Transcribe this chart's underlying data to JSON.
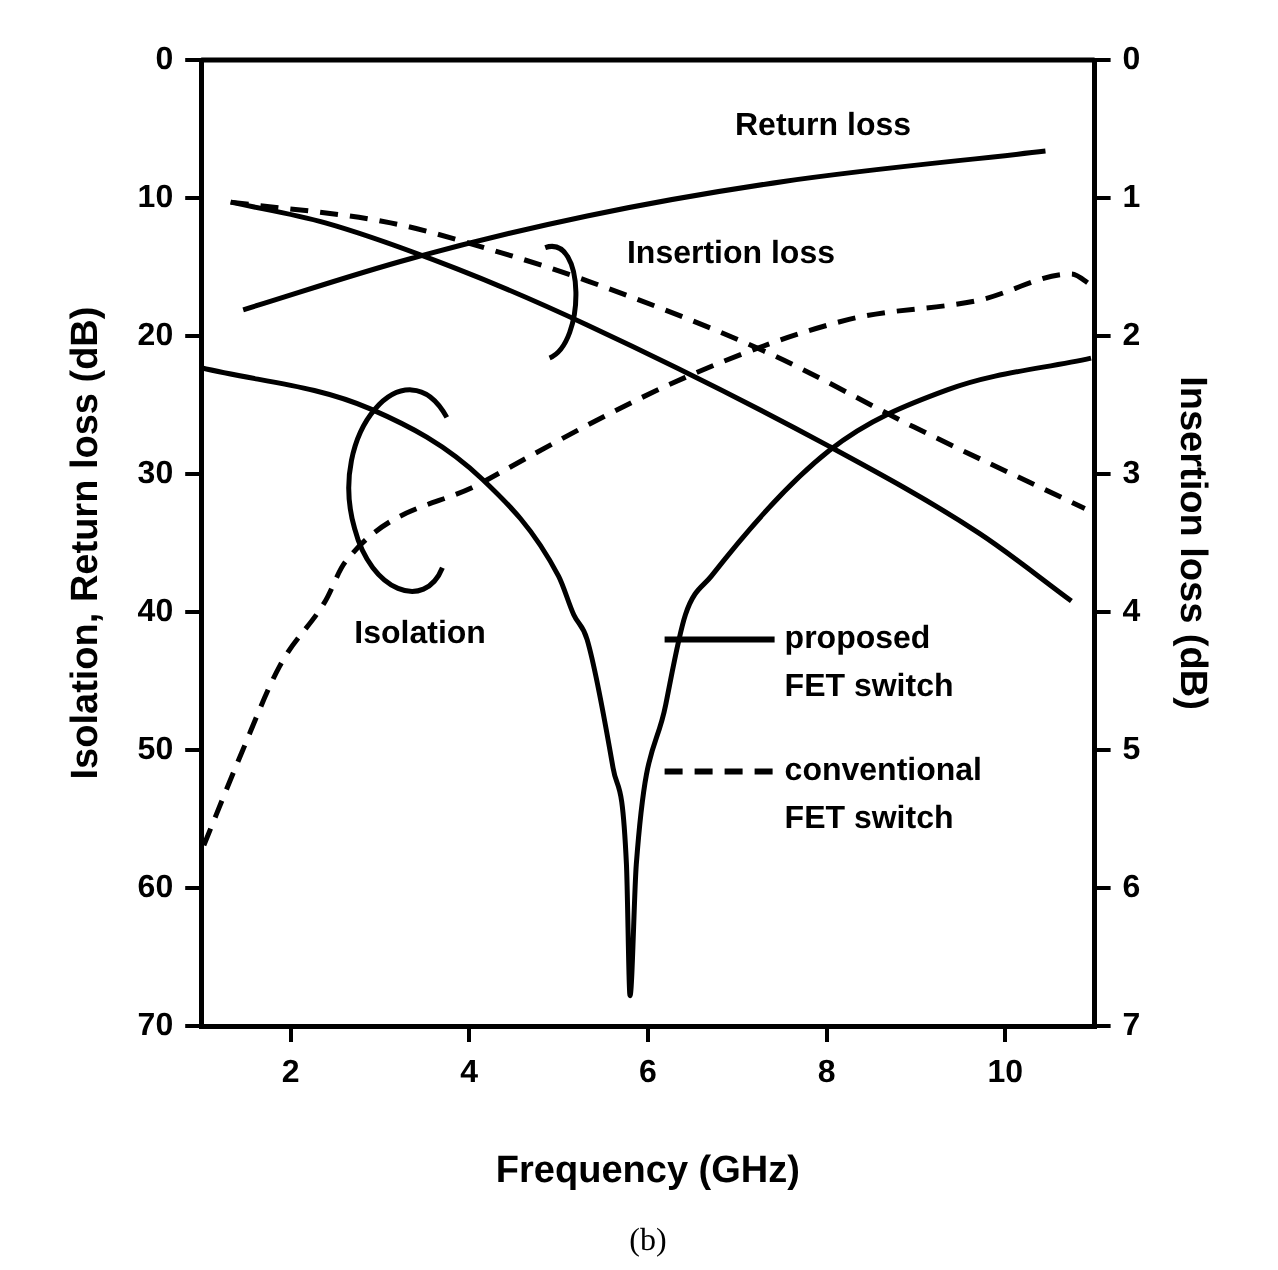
{
  "chart_data": {
    "type": "line",
    "xlabel": "Frequency (GHz)",
    "ylabel": "Isolation, Return loss (dB)",
    "y2label": "Insertion loss (dB)",
    "xlim": [
      1,
      11
    ],
    "xticks": [
      2,
      4,
      6,
      8,
      10
    ],
    "ylim": [
      70,
      0
    ],
    "yticks": [
      0,
      10,
      20,
      30,
      40,
      50,
      60,
      70
    ],
    "y2lim": [
      7,
      0
    ],
    "y2ticks": [
      0,
      1,
      2,
      3,
      4,
      5,
      6,
      7
    ],
    "grid": false,
    "legend": "bottom right",
    "annotations": [
      "Return loss",
      "Insertion loss",
      "Isolation",
      "(b)"
    ],
    "series": [
      {
        "name": "proposed FET switch",
        "color": "#000000",
        "line_style": "solid",
        "x": [
          1.47,
          3.34,
          5.32,
          7.52,
          10.45
        ],
        "values": [
          18.1,
          14.4,
          11.3,
          8.8,
          6.6
        ]
      },
      {
        "color": "#000000",
        "line_style": "solid",
        "axis": "y2",
        "x": [
          1.33,
          2.39,
          3.85,
          5.32,
          8.03,
          9.71,
          10.74
        ],
        "values": [
          1.03,
          1.18,
          1.51,
          1.92,
          2.8,
          3.43,
          3.92
        ]
      },
      {
        "color": "#000000",
        "line_style": "solid",
        "x": [
          1,
          2.9,
          4.15,
          5.0,
          5.17,
          5.32,
          5.61,
          5.76,
          5.8,
          5.87,
          6.2,
          6.42,
          6.71,
          8.03,
          9.35,
          10.96
        ],
        "values": [
          22.3,
          25.3,
          30.4,
          37.4,
          40.2,
          42.0,
          51.3,
          58.3,
          67.8,
          58.3,
          46.7,
          40.2,
          37.4,
          28.3,
          23.9,
          21.6
        ]
      },
      {
        "name": "conventional FET switch",
        "color": "#000000",
        "line_style": "dashed",
        "axis": "y2",
        "x": [
          1.33,
          3.12,
          4.22,
          5.32,
          7.37,
          8.98,
          10.89
        ],
        "values": [
          1.03,
          1.18,
          1.37,
          1.6,
          2.13,
          2.66,
          3.25
        ]
      },
      {
        "color": "#000000",
        "line_style": "dashed",
        "x": [
          1.03,
          1.44,
          1.88,
          2.39,
          2.61,
          4.15,
          6.42,
          8.25,
          9.71,
          10.74,
          10.96
        ],
        "values": [
          56.9,
          50.4,
          43.9,
          39.2,
          36.4,
          30.6,
          23.0,
          18.8,
          17.4,
          15.5,
          16.3
        ]
      }
    ]
  }
}
